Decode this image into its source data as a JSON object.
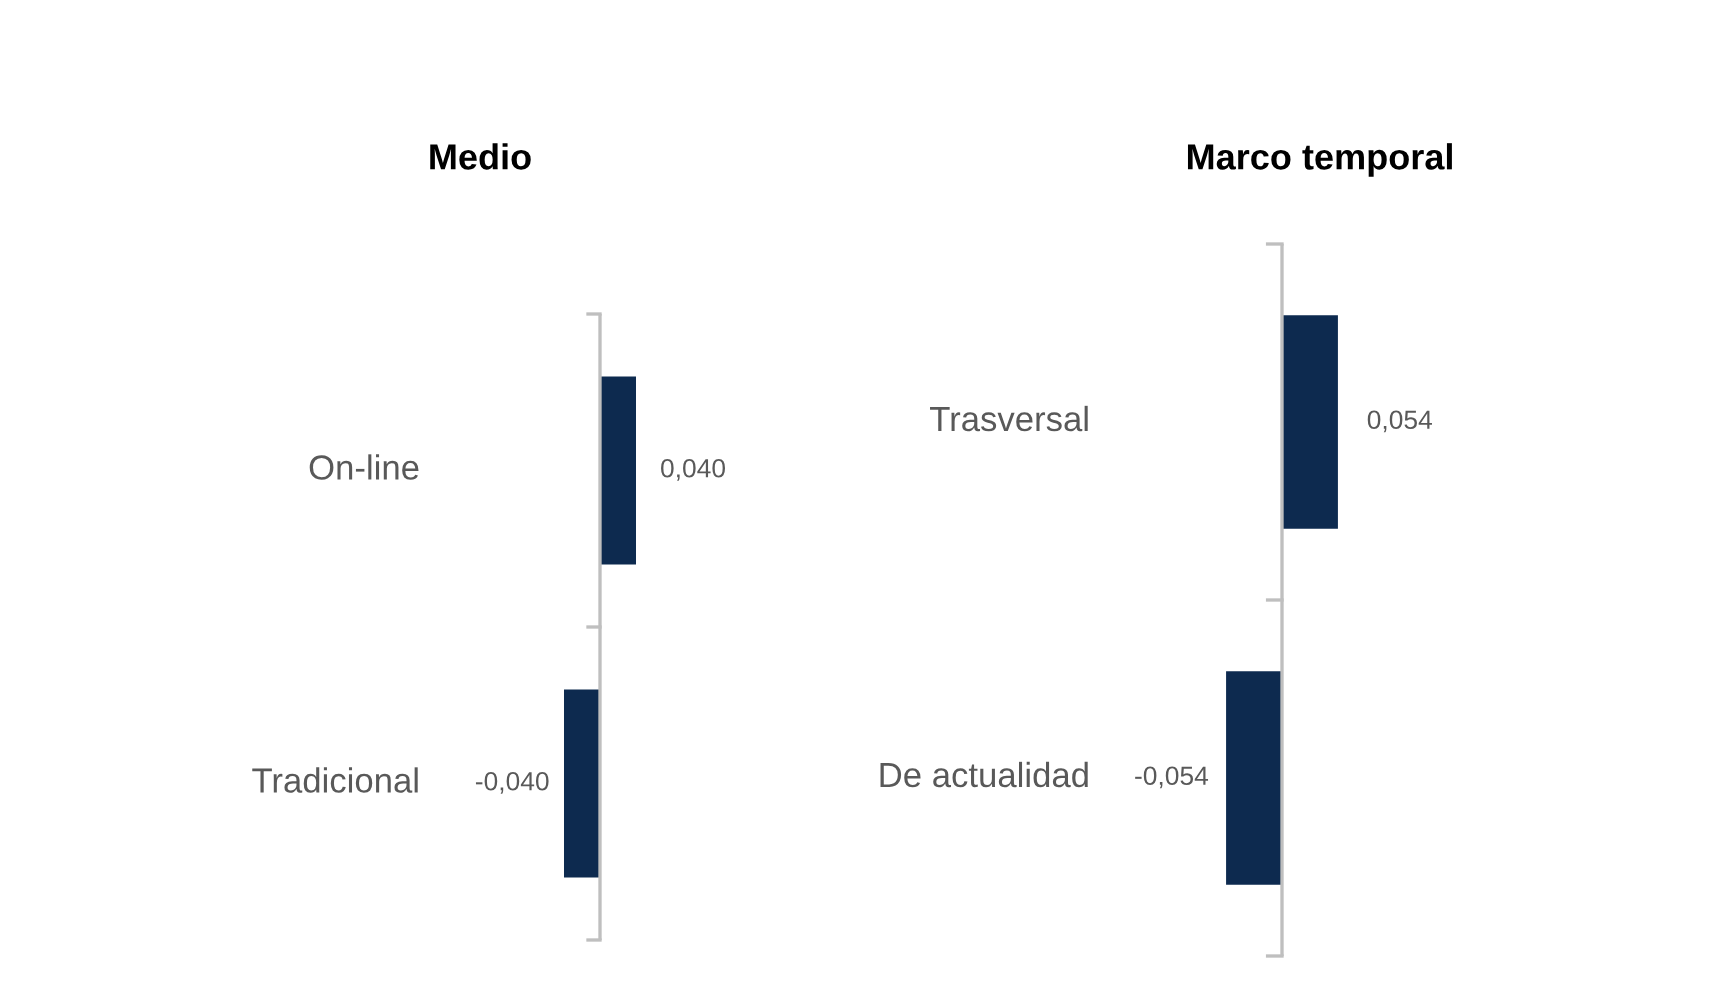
{
  "chart_data": [
    {
      "type": "bar",
      "orientation": "horizontal",
      "title": "Medio",
      "categories": [
        "On-line",
        "Tradicional"
      ],
      "values": [
        0.04,
        -0.04
      ],
      "color": "#0d2a4f",
      "value_labels": [
        "0,040",
        "-0,040"
      ]
    },
    {
      "type": "bar",
      "orientation": "horizontal",
      "title": "Marco temporal",
      "categories": [
        "Trasversal",
        "De actualidad"
      ],
      "values": [
        0.054,
        -0.054
      ],
      "color": "#0d2a4f",
      "value_labels": [
        "0,054",
        "-0,054"
      ]
    }
  ]
}
